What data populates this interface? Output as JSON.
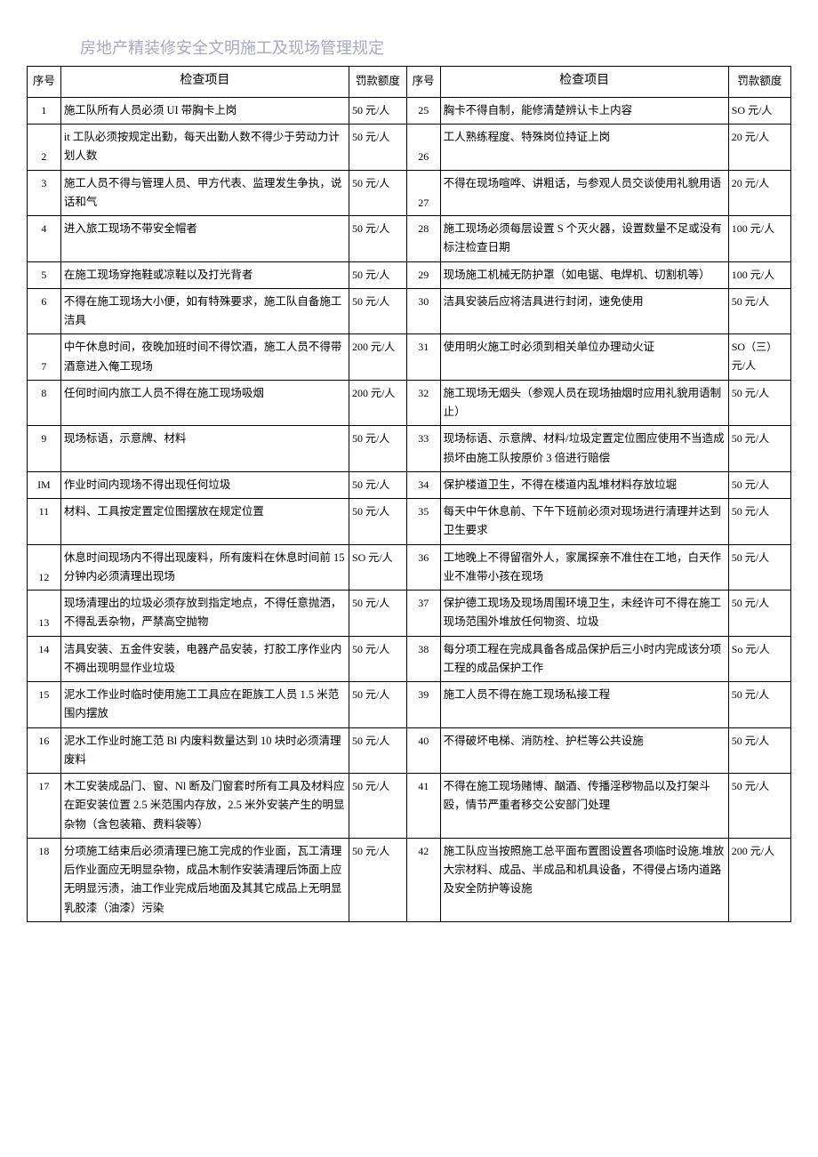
{
  "title": "房地产精装修安全文明施工及现场管理规定",
  "headers": {
    "seq": "序号",
    "item": "检查项目",
    "fine": "罚款额度"
  },
  "left_rows": [
    {
      "seq": "1",
      "item": "施工队所有人员必须 UI 带胸卡上岗",
      "fine": "50 元/人"
    },
    {
      "seq": "2",
      "item": "it 工队必须按规定出勤，每天出勤人数不得少于劳动力计划人数",
      "fine": "50 元/人"
    },
    {
      "seq": "3",
      "item": "施工人员不得与管理人员、甲方代表、监理发生争执，说话和气",
      "fine": "50 元/人"
    },
    {
      "seq": "4",
      "item": "进入旅工现场不带安全帽者",
      "fine": "50 元/人"
    },
    {
      "seq": "5",
      "item": "在施工现场穿拖鞋或凉鞋以及打光背者",
      "fine": "50 元/人"
    },
    {
      "seq": "6",
      "item": "不得在施工现场大小便，如有特殊要求，施工队自备施工洁具",
      "fine": "50 元/人"
    },
    {
      "seq": "7",
      "item": "中午休息时间，夜晚加班时间不得饮酒，施工人员不得带酒意进入俺工现场",
      "fine": "200 元/人"
    },
    {
      "seq": "8",
      "item": "任何时间内旅工人员不得在施工现场吸烟",
      "fine": "200 元/人"
    },
    {
      "seq": "9",
      "item": "现场标语，示意牌、材料",
      "fine": "50 元/人"
    },
    {
      "seq": "IM",
      "item": "作业时间内现场不得出现任何垃圾",
      "fine": "50 元/人"
    },
    {
      "seq": "11",
      "item": "材料、工具按定置定位图摆放在规定位置",
      "fine": "50 元/人"
    },
    {
      "seq": "12",
      "item": "休息时间现场内不得出现废料，所有废料在休息时间前 15分钟内必须清理出现场",
      "fine": "SO 元/人"
    },
    {
      "seq": "13",
      "item": "现场清理出的垃圾必须存放到指定地点，不得任意抛洒，不得乱丢杂物，严禁高空抛物",
      "fine": "50 元/人"
    },
    {
      "seq": "14",
      "item": "洁具安装、五金件安装，电器产品安装，打胶工序作业内不褥出现明显作业垃圾",
      "fine": "50 元/人"
    },
    {
      "seq": "15",
      "item": "泥水工作业时临时使用施工工具应在距族工人员 1.5 米范围内摆放",
      "fine": "50 元/人"
    },
    {
      "seq": "16",
      "item": "泥水工作业时施工范 Bl 内废料数量达到 10 块时必须清理废料",
      "fine": "50 元/人"
    },
    {
      "seq": "17",
      "item": "木工安装成品门、窗、Nl 断及门窗套时所有工具及材料应在距安装位置 2.5 米范围内存放，2.5 米外安装产生的明显杂物（含包装箱、费料袋等）",
      "fine": "50 元/人"
    },
    {
      "seq": "18",
      "item": "分项施工结束后必须清理已施工完成的作业面，瓦工清理后作业面应无明显杂物，成品木制作安装清理后饰面上应无明显污渍，油工作业完成后地面及其其它成品上无明显乳胶漆（油漆）污染",
      "fine": "50 元/人"
    }
  ],
  "right_rows": [
    {
      "seq": "25",
      "item": "胸卡不得自制，能修清楚辨认卡上内容",
      "fine": "SO 元/人"
    },
    {
      "seq": "26",
      "item": "工人熟练程度、特殊岗位持证上岗",
      "fine": "20 元/人"
    },
    {
      "seq": "27",
      "item": "不得在现场喧哗、讲粗话，与参观人员交谈使用礼貌用语",
      "fine": "20 元/人"
    },
    {
      "seq": "28",
      "item": "施工现场必须每层设置 S 个灭火器，设置数量不足或没有标注检查日期",
      "fine": "100 元/人"
    },
    {
      "seq": "29",
      "item": "现场施工机械无防护罩（如电锯、电焊机、切割机等）",
      "fine": "100 元/人"
    },
    {
      "seq": "30",
      "item": "洁具安装后应将洁具进行封闭，速免使用",
      "fine": "50 元/人"
    },
    {
      "seq": "31",
      "item": "使用明火施工时必须到相关单位办理动火证",
      "fine": "SO（三）元/人"
    },
    {
      "seq": "32",
      "item": "施工现场无烟头（参观人员在现场抽烟时应用礼貌用语制止）",
      "fine": "50 元/人"
    },
    {
      "seq": "33",
      "item": "现场标语、示意牌、材料/垃圾定置定位图应使用不当造成损坏由施工队按原价 3 倍进行赔偿",
      "fine": "50 元/人"
    },
    {
      "seq": "34",
      "item": "保护楼道卫生，不得在楼道内乱堆材料存放垃堀",
      "fine": "50 元/人"
    },
    {
      "seq": "35",
      "item": "每天中午休息前、下午下班前必须对现场进行清理并达到卫生要求",
      "fine": "50 元/人"
    },
    {
      "seq": "36",
      "item": "工地晚上不得留宿外人，家属探亲不准住在工地，白天作业不准带小孩在现场",
      "fine": "50 元/人"
    },
    {
      "seq": "37",
      "item": "保护德工现场及现场周围环境卫生，未经许可不得在施工现场范围外堆放任何物资、垃圾",
      "fine": "50 元/人"
    },
    {
      "seq": "38",
      "item": "每分项工程在完成具备各成品保护后三小时内完成该分项工程的成品保护工作",
      "fine": "So 元/人"
    },
    {
      "seq": "39",
      "item": "施工人员不得在施工现场私接工程",
      "fine": "50 元/人"
    },
    {
      "seq": "40",
      "item": "不得破坏电梯、消防栓、护栏等公共设施",
      "fine": "50 元/人"
    },
    {
      "seq": "41",
      "item": "不得在施工现场赌博、酗酒、传播淫秽物品以及打架斗殴，情节严重者移交公安部门处理",
      "fine": "50 元/人"
    },
    {
      "seq": "42",
      "item": "施工队应当按照施工总平面布置图设置各项临时设施.堆放大宗材料、成品、半成品和机具设备，不得侵占场内道路及安全防护等设施",
      "fine": "200 元/人"
    }
  ]
}
